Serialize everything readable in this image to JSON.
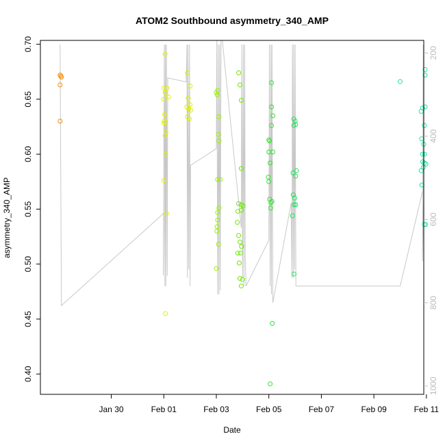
{
  "chart_data": {
    "type": "scatter",
    "title": "ATOM2 Southbound asymmetry_340_AMP",
    "xlabel": "Date",
    "ylabel": "asymmetry_340_AMP",
    "x_date_start": "Jan 28",
    "xlim": [
      -0.7,
      13.9
    ],
    "ylim": [
      0.3815,
      0.7035
    ],
    "y2lim": [
      1020,
      170
    ],
    "x_ticks": [
      {
        "x": 2,
        "label": "Jan 30"
      },
      {
        "x": 4,
        "label": "Feb 01"
      },
      {
        "x": 6,
        "label": "Feb 03"
      },
      {
        "x": 8,
        "label": "Feb 05"
      },
      {
        "x": 10,
        "label": "Feb 07"
      },
      {
        "x": 12,
        "label": "Feb 09"
      },
      {
        "x": 14,
        "label": "Feb 11"
      }
    ],
    "y_ticks": [
      {
        "y": 0.4,
        "label": "0.40"
      },
      {
        "y": 0.45,
        "label": "0.45"
      },
      {
        "y": 0.5,
        "label": "0.50"
      },
      {
        "y": 0.55,
        "label": "0.55"
      },
      {
        "y": 0.6,
        "label": "0.60"
      },
      {
        "y": 0.65,
        "label": "0.65"
      },
      {
        "y": 0.7,
        "label": "0.70"
      }
    ],
    "y2_ticks": [
      {
        "y": 200,
        "label": "200"
      },
      {
        "y": 400,
        "label": "400"
      },
      {
        "y": 600,
        "label": "600"
      },
      {
        "y": 800,
        "label": "800"
      },
      {
        "y": 1000,
        "label": "1000"
      }
    ],
    "grid": false,
    "legend": "none",
    "points": [
      {
        "x": 0.05,
        "y": 0.672,
        "color": "#ff8c00"
      },
      {
        "x": 0.08,
        "y": 0.671,
        "color": "#ff8c00"
      },
      {
        "x": 0.1,
        "y": 0.67,
        "color": "#ff8c00"
      },
      {
        "x": 0.05,
        "y": 0.663,
        "color": "#ff8c00"
      },
      {
        "x": 0.05,
        "y": 0.63,
        "color": "#ff8c00"
      },
      {
        "x": 4.05,
        "y": 0.691,
        "color": "#e4f000"
      },
      {
        "x": 4.0,
        "y": 0.66,
        "color": "#e4f000"
      },
      {
        "x": 4.12,
        "y": 0.66,
        "color": "#e4f000"
      },
      {
        "x": 4.05,
        "y": 0.656,
        "color": "#e4f000"
      },
      {
        "x": 4.18,
        "y": 0.652,
        "color": "#e4f000"
      },
      {
        "x": 4.0,
        "y": 0.65,
        "color": "#e4f000"
      },
      {
        "x": 4.03,
        "y": 0.636,
        "color": "#e4f000"
      },
      {
        "x": 4.02,
        "y": 0.63,
        "color": "#e4f000"
      },
      {
        "x": 4.06,
        "y": 0.629,
        "color": "#e4f000"
      },
      {
        "x": 4.0,
        "y": 0.628,
        "color": "#e4f000"
      },
      {
        "x": 4.08,
        "y": 0.62,
        "color": "#e4f000"
      },
      {
        "x": 4.05,
        "y": 0.617,
        "color": "#e4f000"
      },
      {
        "x": 4.07,
        "y": 0.6,
        "color": "#e4f000"
      },
      {
        "x": 4.0,
        "y": 0.576,
        "color": "#e4f000"
      },
      {
        "x": 4.1,
        "y": 0.546,
        "color": "#e4f000"
      },
      {
        "x": 4.06,
        "y": 0.455,
        "color": "#e4f000"
      },
      {
        "x": 4.9,
        "y": 0.674,
        "color": "#d9f000"
      },
      {
        "x": 5.0,
        "y": 0.662,
        "color": "#d9f000"
      },
      {
        "x": 4.93,
        "y": 0.651,
        "color": "#d9f000"
      },
      {
        "x": 5.0,
        "y": 0.645,
        "color": "#d9f000"
      },
      {
        "x": 4.88,
        "y": 0.643,
        "color": "#d9f000"
      },
      {
        "x": 4.95,
        "y": 0.641,
        "color": "#d9f000"
      },
      {
        "x": 5.02,
        "y": 0.64,
        "color": "#d9f000"
      },
      {
        "x": 4.9,
        "y": 0.634,
        "color": "#d9f000"
      },
      {
        "x": 4.97,
        "y": 0.632,
        "color": "#d9f000"
      },
      {
        "x": 6.05,
        "y": 0.658,
        "color": "#9af000"
      },
      {
        "x": 6.0,
        "y": 0.656,
        "color": "#9af000"
      },
      {
        "x": 6.03,
        "y": 0.654,
        "color": "#9af000"
      },
      {
        "x": 6.1,
        "y": 0.634,
        "color": "#9af000"
      },
      {
        "x": 6.08,
        "y": 0.618,
        "color": "#9af000"
      },
      {
        "x": 6.1,
        "y": 0.612,
        "color": "#9af000"
      },
      {
        "x": 6.05,
        "y": 0.577,
        "color": "#9af000"
      },
      {
        "x": 6.15,
        "y": 0.577,
        "color": "#9af000"
      },
      {
        "x": 6.1,
        "y": 0.551,
        "color": "#9af000"
      },
      {
        "x": 6.05,
        "y": 0.547,
        "color": "#9af000"
      },
      {
        "x": 6.05,
        "y": 0.54,
        "color": "#9af000"
      },
      {
        "x": 6.03,
        "y": 0.534,
        "color": "#9af000"
      },
      {
        "x": 6.02,
        "y": 0.53,
        "color": "#9af000"
      },
      {
        "x": 6.08,
        "y": 0.518,
        "color": "#9af000"
      },
      {
        "x": 6.0,
        "y": 0.496,
        "color": "#9af000"
      },
      {
        "x": 6.85,
        "y": 0.674,
        "color": "#6ee600"
      },
      {
        "x": 6.9,
        "y": 0.663,
        "color": "#6ee600"
      },
      {
        "x": 6.95,
        "y": 0.649,
        "color": "#6ee600"
      },
      {
        "x": 6.95,
        "y": 0.587,
        "color": "#6ee600"
      },
      {
        "x": 6.85,
        "y": 0.555,
        "color": "#6ee600"
      },
      {
        "x": 6.95,
        "y": 0.554,
        "color": "#6ee600"
      },
      {
        "x": 7.02,
        "y": 0.553,
        "color": "#6ee600"
      },
      {
        "x": 6.95,
        "y": 0.549,
        "color": "#6ee600"
      },
      {
        "x": 6.82,
        "y": 0.548,
        "color": "#6ee600"
      },
      {
        "x": 6.8,
        "y": 0.538,
        "color": "#6ee600"
      },
      {
        "x": 6.85,
        "y": 0.526,
        "color": "#6ee600"
      },
      {
        "x": 6.9,
        "y": 0.52,
        "color": "#6ee600"
      },
      {
        "x": 6.96,
        "y": 0.516,
        "color": "#6ee600"
      },
      {
        "x": 6.82,
        "y": 0.51,
        "color": "#6ee600"
      },
      {
        "x": 6.92,
        "y": 0.51,
        "color": "#6ee600"
      },
      {
        "x": 6.87,
        "y": 0.501,
        "color": "#6ee600"
      },
      {
        "x": 6.9,
        "y": 0.487,
        "color": "#6ee600"
      },
      {
        "x": 7.0,
        "y": 0.486,
        "color": "#6ee600"
      },
      {
        "x": 6.95,
        "y": 0.48,
        "color": "#6ee600"
      },
      {
        "x": 8.1,
        "y": 0.665,
        "color": "#33e030"
      },
      {
        "x": 8.1,
        "y": 0.643,
        "color": "#33e030"
      },
      {
        "x": 8.15,
        "y": 0.635,
        "color": "#33e030"
      },
      {
        "x": 8.1,
        "y": 0.626,
        "color": "#33e030"
      },
      {
        "x": 8.0,
        "y": 0.613,
        "color": "#33e030"
      },
      {
        "x": 8.03,
        "y": 0.612,
        "color": "#33e030"
      },
      {
        "x": 8.0,
        "y": 0.602,
        "color": "#33e030"
      },
      {
        "x": 8.15,
        "y": 0.602,
        "color": "#33e030"
      },
      {
        "x": 8.05,
        "y": 0.592,
        "color": "#33e030"
      },
      {
        "x": 7.98,
        "y": 0.579,
        "color": "#33e030"
      },
      {
        "x": 8.0,
        "y": 0.575,
        "color": "#33e030"
      },
      {
        "x": 8.03,
        "y": 0.559,
        "color": "#33e030"
      },
      {
        "x": 8.12,
        "y": 0.557,
        "color": "#33e030"
      },
      {
        "x": 8.08,
        "y": 0.556,
        "color": "#33e030"
      },
      {
        "x": 8.07,
        "y": 0.551,
        "color": "#33e030"
      },
      {
        "x": 8.13,
        "y": 0.446,
        "color": "#33e030"
      },
      {
        "x": 8.05,
        "y": 0.391,
        "color": "#33e030"
      },
      {
        "x": 8.95,
        "y": 0.632,
        "color": "#20e060"
      },
      {
        "x": 9.0,
        "y": 0.63,
        "color": "#20e060"
      },
      {
        "x": 9.02,
        "y": 0.627,
        "color": "#20e060"
      },
      {
        "x": 8.95,
        "y": 0.626,
        "color": "#20e060"
      },
      {
        "x": 9.05,
        "y": 0.585,
        "color": "#20e060"
      },
      {
        "x": 8.92,
        "y": 0.583,
        "color": "#20e060"
      },
      {
        "x": 9.02,
        "y": 0.58,
        "color": "#20e060"
      },
      {
        "x": 8.93,
        "y": 0.563,
        "color": "#20e060"
      },
      {
        "x": 8.98,
        "y": 0.56,
        "color": "#20e060"
      },
      {
        "x": 8.96,
        "y": 0.554,
        "color": "#20e060"
      },
      {
        "x": 9.02,
        "y": 0.554,
        "color": "#20e060"
      },
      {
        "x": 8.9,
        "y": 0.544,
        "color": "#20e060"
      },
      {
        "x": 8.96,
        "y": 0.491,
        "color": "#20e060"
      },
      {
        "x": 13.0,
        "y": 0.666,
        "color": "#20e0a0"
      },
      {
        "x": 13.95,
        "y": 0.677,
        "color": "#20e0a0"
      },
      {
        "x": 13.95,
        "y": 0.672,
        "color": "#20e0a0"
      },
      {
        "x": 13.95,
        "y": 0.643,
        "color": "#20e0a0"
      },
      {
        "x": 13.85,
        "y": 0.642,
        "color": "#20e0a0"
      },
      {
        "x": 13.8,
        "y": 0.639,
        "color": "#20e0a0"
      },
      {
        "x": 13.92,
        "y": 0.626,
        "color": "#20e0a0"
      },
      {
        "x": 13.82,
        "y": 0.614,
        "color": "#20e0a0"
      },
      {
        "x": 13.9,
        "y": 0.609,
        "color": "#20e0a0"
      },
      {
        "x": 13.85,
        "y": 0.6,
        "color": "#20e0a0"
      },
      {
        "x": 13.93,
        "y": 0.6,
        "color": "#20e0a0"
      },
      {
        "x": 13.86,
        "y": 0.593,
        "color": "#20e0a0"
      },
      {
        "x": 13.92,
        "y": 0.592,
        "color": "#20e0a0"
      },
      {
        "x": 13.98,
        "y": 0.591,
        "color": "#20e0a0"
      },
      {
        "x": 13.88,
        "y": 0.588,
        "color": "#20e0a0"
      },
      {
        "x": 13.8,
        "y": 0.585,
        "color": "#20e0a0"
      },
      {
        "x": 13.83,
        "y": 0.572,
        "color": "#20e0a0"
      },
      {
        "x": 13.92,
        "y": 0.536,
        "color": "#20e0a0"
      },
      {
        "x": 13.97,
        "y": 0.536,
        "color": "#20e0a0"
      }
    ],
    "secondary_line": {
      "color": "#c8c8c8",
      "x": [
        0.05,
        0.1,
        4.0,
        3.98,
        4.02,
        4.04,
        4.06,
        4.08,
        4.1,
        4.13,
        4.15,
        4.85,
        4.88,
        4.9,
        4.92,
        4.95,
        4.98,
        5.0,
        5.02,
        6.0,
        6.02,
        6.05,
        6.08,
        6.1,
        6.13,
        6.15,
        6.18,
        6.95,
        6.97,
        7.0,
        7.03,
        7.05,
        7.08,
        7.1,
        7.13,
        8.0,
        8.02,
        8.05,
        8.08,
        8.1,
        8.12,
        8.15,
        8.85,
        8.88,
        8.9,
        8.93,
        8.95,
        8.98,
        9.0,
        9.03,
        13.0,
        13.9,
        13.85,
        13.88,
        13.9,
        13.95,
        13.98
      ],
      "y": [
        180,
        807,
        585,
        734,
        180,
        760,
        180,
        760,
        180,
        735,
        260,
        270,
        180,
        740,
        180,
        720,
        180,
        760,
        470,
        430,
        140,
        780,
        180,
        780,
        180,
        770,
        140,
        620,
        180,
        740,
        180,
        760,
        180,
        690,
        760,
        650,
        180,
        760,
        180,
        780,
        180,
        800,
        560,
        740,
        180,
        740,
        180,
        720,
        180,
        760,
        760,
        520,
        700,
        180,
        760,
        180,
        760
      ]
    }
  }
}
